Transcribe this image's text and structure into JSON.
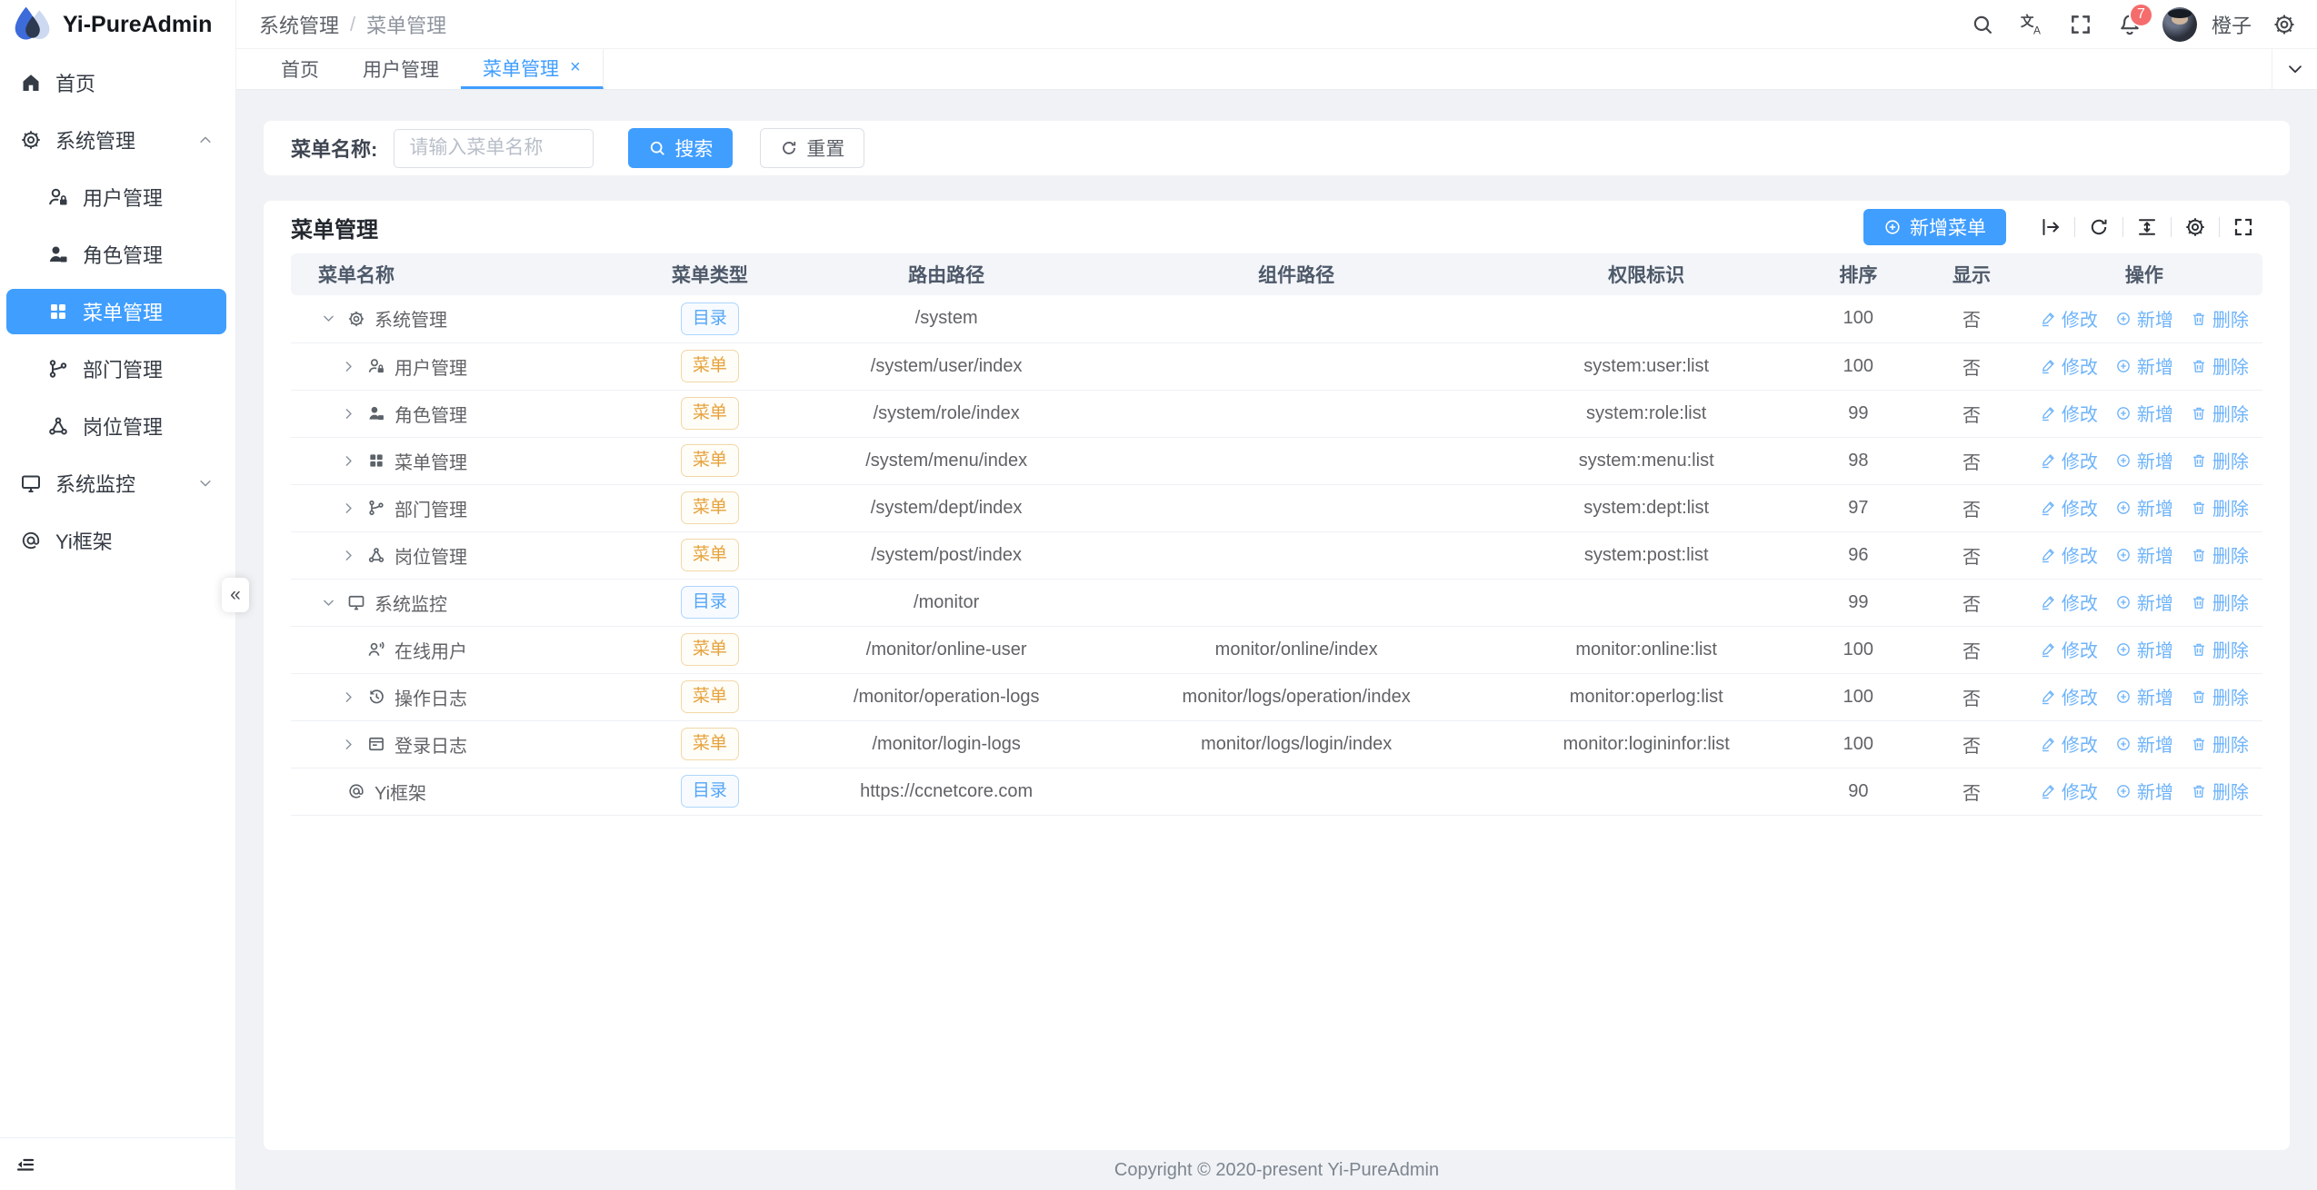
{
  "sidebar": {
    "logo_title": "Yi-PureAdmin",
    "logo_icon": "water-drop-logo-icon",
    "collapse_glyph": "«",
    "items": [
      {
        "label": "首页",
        "icon": "home-icon",
        "level": 0,
        "chevron": null,
        "active": false
      },
      {
        "label": "系统管理",
        "icon": "gear-icon",
        "level": 0,
        "chevron": "up",
        "active": false
      },
      {
        "label": "用户管理",
        "icon": "user-lock-icon",
        "level": 1,
        "chevron": null,
        "active": false
      },
      {
        "label": "角色管理",
        "icon": "role-user-icon",
        "level": 1,
        "chevron": null,
        "active": false
      },
      {
        "label": "菜单管理",
        "icon": "menu-grid-icon",
        "level": 1,
        "chevron": null,
        "active": true
      },
      {
        "label": "部门管理",
        "icon": "dept-tree-icon",
        "level": 1,
        "chevron": null,
        "active": false
      },
      {
        "label": "岗位管理",
        "icon": "post-share-icon",
        "level": 1,
        "chevron": null,
        "active": false
      },
      {
        "label": "系统监控",
        "icon": "monitor-icon",
        "level": 0,
        "chevron": "down",
        "active": false
      },
      {
        "label": "Yi框架",
        "icon": "at-sign-icon",
        "level": 0,
        "chevron": null,
        "active": false
      }
    ]
  },
  "topbar": {
    "breadcrumb": [
      "系统管理",
      "菜单管理"
    ],
    "separator": "/",
    "tools": [
      {
        "icon": "search-icon"
      },
      {
        "icon": "translate-icon"
      },
      {
        "icon": "fullscreen-icon"
      },
      {
        "icon": "notification-bell-icon",
        "badge": "7"
      }
    ],
    "username": "橙子",
    "settings_icon": "settings-gear-icon"
  },
  "tabs": {
    "close_glyph": "×",
    "items": [
      {
        "label": "首页",
        "active": false,
        "closable": false
      },
      {
        "label": "用户管理",
        "active": false,
        "closable": false
      },
      {
        "label": "菜单管理",
        "active": true,
        "closable": true
      }
    ]
  },
  "search": {
    "label": "菜单名称:",
    "placeholder": "请输入菜单名称",
    "search_button": "搜索",
    "reset_button": "重置"
  },
  "panel": {
    "title": "菜单管理",
    "add_button": "新增菜单",
    "tools": [
      "expand-all-icon",
      "refresh-icon",
      "density-icon",
      "column-settings-icon",
      "fullscreen-icon"
    ]
  },
  "table": {
    "columns": [
      "菜单名称",
      "菜单类型",
      "路由路径",
      "组件路径",
      "权限标识",
      "排序",
      "显示",
      "操作"
    ],
    "tag_labels": {
      "dir": "目录",
      "menu": "菜单"
    },
    "action_labels": [
      "修改",
      "新增",
      "删除"
    ],
    "rows": [
      {
        "name": "系统管理",
        "icon": "gear-icon",
        "expander": "down",
        "level": 0,
        "type": "dir",
        "route": "/system",
        "component": "",
        "perm": "",
        "sort": "100",
        "visible": "否"
      },
      {
        "name": "用户管理",
        "icon": "user-lock-icon",
        "expander": "right",
        "level": 1,
        "type": "menu",
        "route": "/system/user/index",
        "component": "",
        "perm": "system:user:list",
        "sort": "100",
        "visible": "否"
      },
      {
        "name": "角色管理",
        "icon": "role-user-icon",
        "expander": "right",
        "level": 1,
        "type": "menu",
        "route": "/system/role/index",
        "component": "",
        "perm": "system:role:list",
        "sort": "99",
        "visible": "否"
      },
      {
        "name": "菜单管理",
        "icon": "menu-grid-icon",
        "expander": "right",
        "level": 1,
        "type": "menu",
        "route": "/system/menu/index",
        "component": "",
        "perm": "system:menu:list",
        "sort": "98",
        "visible": "否"
      },
      {
        "name": "部门管理",
        "icon": "dept-tree-icon",
        "expander": "right",
        "level": 1,
        "type": "menu",
        "route": "/system/dept/index",
        "component": "",
        "perm": "system:dept:list",
        "sort": "97",
        "visible": "否"
      },
      {
        "name": "岗位管理",
        "icon": "post-share-icon",
        "expander": "right",
        "level": 1,
        "type": "menu",
        "route": "/system/post/index",
        "component": "",
        "perm": "system:post:list",
        "sort": "96",
        "visible": "否"
      },
      {
        "name": "系统监控",
        "icon": "monitor-icon",
        "expander": "down",
        "level": 0,
        "type": "dir",
        "route": "/monitor",
        "component": "",
        "perm": "",
        "sort": "99",
        "visible": "否"
      },
      {
        "name": "在线用户",
        "icon": "online-user-icon",
        "expander": null,
        "level": 1,
        "type": "menu",
        "route": "/monitor/online-user",
        "component": "monitor/online/index",
        "perm": "monitor:online:list",
        "sort": "100",
        "visible": "否"
      },
      {
        "name": "操作日志",
        "icon": "history-icon",
        "expander": "right",
        "level": 1,
        "type": "menu",
        "route": "/monitor/operation-logs",
        "component": "monitor/logs/operation/index",
        "perm": "monitor:operlog:list",
        "sort": "100",
        "visible": "否"
      },
      {
        "name": "登录日志",
        "icon": "log-window-icon",
        "expander": "right",
        "level": 1,
        "type": "menu",
        "route": "/monitor/login-logs",
        "component": "monitor/logs/login/index",
        "perm": "monitor:logininfor:list",
        "sort": "100",
        "visible": "否"
      },
      {
        "name": "Yi框架",
        "icon": "at-sign-icon",
        "expander": null,
        "level": 0,
        "type": "dir",
        "route": "https://ccnetcore.com",
        "component": "",
        "perm": "",
        "sort": "90",
        "visible": "否"
      }
    ]
  },
  "footer": {
    "copyright": "Copyright © 2020-present Yi-PureAdmin"
  },
  "colors": {
    "primary": "#409eff",
    "tag_dir": "#409eff",
    "tag_menu": "#e6a23c",
    "badge": "#f56c6c"
  }
}
